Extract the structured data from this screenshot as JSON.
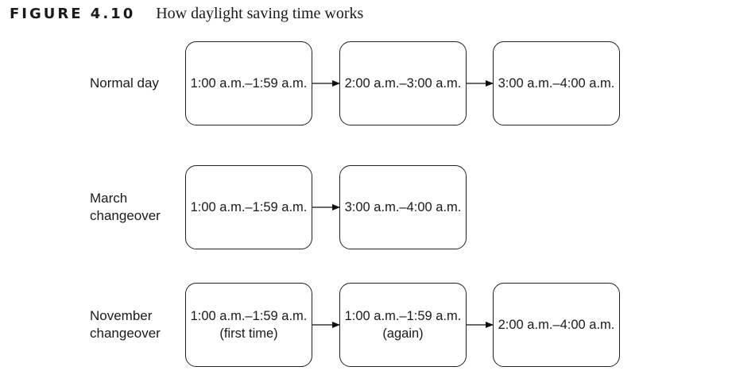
{
  "figure": {
    "label": "FIGURE 4.10",
    "title": "How daylight saving time works"
  },
  "rows": [
    {
      "label": "Normal day",
      "boxes": [
        {
          "lines": [
            "1:00 a.m.–1:59 a.m."
          ]
        },
        {
          "lines": [
            "2:00 a.m.–3:00 a.m."
          ]
        },
        {
          "lines": [
            "3:00 a.m.–4:00 a.m."
          ]
        }
      ]
    },
    {
      "label": "March\nchangeover",
      "boxes": [
        {
          "lines": [
            "1:00 a.m.–1:59 a.m."
          ]
        },
        {
          "lines": [
            "3:00 a.m.–4:00 a.m."
          ]
        }
      ]
    },
    {
      "label": "November\nchangeover",
      "boxes": [
        {
          "lines": [
            "1:00 a.m.–1:59 a.m.",
            "(first time)"
          ]
        },
        {
          "lines": [
            "1:00 a.m.–1:59 a.m.",
            "(again)"
          ]
        },
        {
          "lines": [
            "2:00 a.m.–4:00 a.m."
          ]
        }
      ]
    }
  ]
}
